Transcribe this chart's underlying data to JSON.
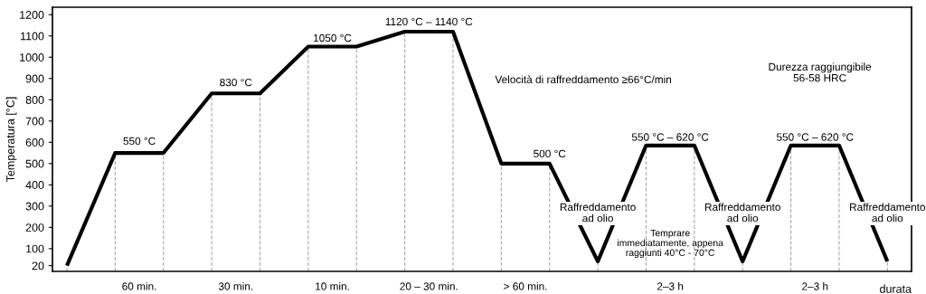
{
  "chart_data": {
    "type": "line",
    "ylabel": "Temperatura [°C]",
    "xlabel": "durata",
    "categories": [
      null,
      null,
      null,
      null,
      null,
      null,
      null,
      null,
      null,
      null,
      null,
      null,
      null,
      null,
      null,
      null,
      null,
      null
    ],
    "series": [
      {
        "color": "#000000",
        "values": [
          20,
          550,
          550,
          830,
          830,
          1050,
          1050,
          1120,
          1120,
          500,
          500,
          40,
          585,
          585,
          40,
          585,
          585,
          40
        ]
      }
    ],
    "ylim": [
      -7,
      1235
    ],
    "yticks": [
      20,
      100,
      200,
      300,
      400,
      500,
      600,
      700,
      800,
      900,
      1000,
      1100,
      1200
    ],
    "tick_labels": "y",
    "grid": "x",
    "annotations": [
      "550 °C",
      "830 °C",
      "1050 °C",
      "1120 °C – 1140 °C",
      "Velocità di raffreddamento ≥66°C/min",
      "500 °C",
      "550 °C – 620 °C",
      "550 °C – 620 °C",
      "Raffreddamento\nad olio",
      "Raffreddamento\nad olio",
      "Raffreddamento\nad olio",
      "Temprare\nimmediatamente, appena\nraggiunti 40°C - 70°C",
      "Durezza raggiungibile\n56-58 HRC",
      "60 min.",
      "30 min.",
      "10 min.",
      "20 – 30 min.",
      "> 60 min.",
      "2–3 h",
      "2–3 h"
    ]
  }
}
